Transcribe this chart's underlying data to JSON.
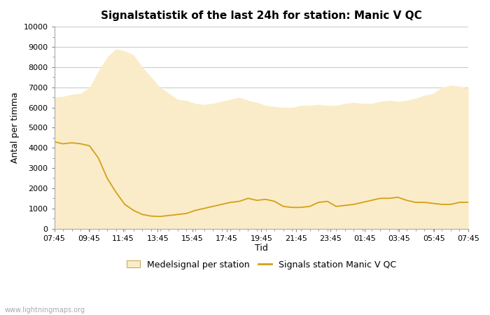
{
  "title": "Signalstatistik of the last 24h for station: Manic V QC",
  "xlabel": "Tid",
  "ylabel": "Antal per timma",
  "ylim": [
    0,
    10000
  ],
  "yticks": [
    0,
    1000,
    2000,
    3000,
    4000,
    5000,
    6000,
    7000,
    8000,
    9000,
    10000
  ],
  "watermark": "www.lightningmaps.org",
  "legend_fill_label": "Medelsignal per station",
  "legend_line_label": "Signals station Manic V QC",
  "fill_color": "#faecc8",
  "line_color": "#d4a017",
  "background_color": "#ffffff",
  "grid_color": "#cccccc",
  "x_labels": [
    "07:45",
    "09:45",
    "11:45",
    "13:45",
    "15:45",
    "17:45",
    "19:45",
    "21:45",
    "23:45",
    "01:45",
    "03:45",
    "05:45",
    "07:45"
  ],
  "fill_x": [
    0,
    1,
    2,
    3,
    4,
    5,
    6,
    7,
    8,
    9,
    10,
    11,
    12,
    13,
    14,
    15,
    16,
    17,
    18,
    19,
    20,
    21,
    22,
    23,
    24,
    25,
    26,
    27,
    28,
    29,
    30,
    31,
    32,
    33,
    34,
    35,
    36,
    37,
    38,
    39,
    40,
    41,
    42,
    43,
    44,
    45,
    46,
    47
  ],
  "fill_y": [
    6500,
    6550,
    6650,
    6700,
    7000,
    7800,
    8500,
    8900,
    8800,
    8600,
    8000,
    7500,
    7000,
    6700,
    6400,
    6350,
    6200,
    6150,
    6200,
    6300,
    6400,
    6500,
    6350,
    6250,
    6100,
    6050,
    6000,
    6000,
    6100,
    6100,
    6150,
    6100,
    6100,
    6200,
    6250,
    6200,
    6200,
    6300,
    6350,
    6300,
    6350,
    6450,
    6600,
    6700,
    7000,
    7100,
    7050,
    6950
  ],
  "line_x": [
    0,
    1,
    2,
    3,
    4,
    5,
    6,
    7,
    8,
    9,
    10,
    11,
    12,
    13,
    14,
    15,
    16,
    17,
    18,
    19,
    20,
    21,
    22,
    23,
    24,
    25,
    26,
    27,
    28,
    29,
    30,
    31,
    32,
    33,
    34,
    35,
    36,
    37,
    38,
    39,
    40,
    41,
    42,
    43,
    44,
    45,
    46,
    47
  ],
  "line_y": [
    4300,
    4200,
    4250,
    4200,
    4100,
    3500,
    2500,
    1800,
    1200,
    900,
    700,
    620,
    600,
    650,
    700,
    750,
    900,
    1000,
    1100,
    1200,
    1300,
    1350,
    1500,
    1400,
    1450,
    1350,
    1100,
    1050,
    1050,
    1100,
    1300,
    1350,
    1100,
    1150,
    1200,
    1300,
    1400,
    1500,
    1500,
    1550,
    1400,
    1300,
    1300,
    1250,
    1200,
    1200,
    1300,
    1300
  ]
}
